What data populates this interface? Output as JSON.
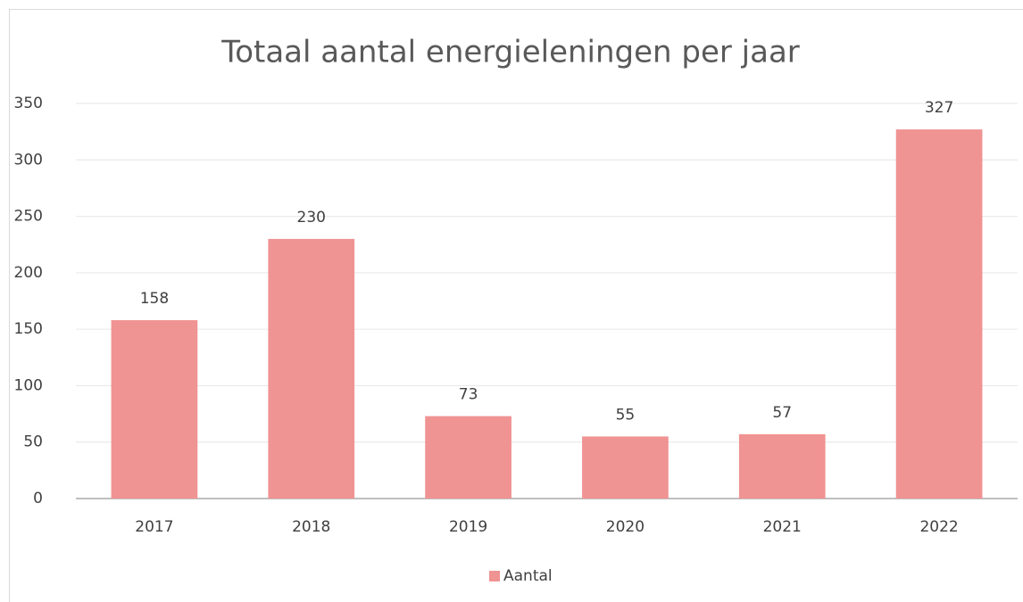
{
  "chart_data": {
    "type": "bar",
    "title": "Totaal aantal energieleningen per jaar",
    "categories": [
      "2017",
      "2018",
      "2019",
      "2020",
      "2021",
      "2022"
    ],
    "series": [
      {
        "name": "Aantal",
        "color": "#f09393",
        "values": [
          158,
          230,
          73,
          55,
          57,
          327
        ]
      }
    ],
    "ylim": [
      0,
      350
    ],
    "yticks": [
      0,
      50,
      100,
      150,
      200,
      250,
      300,
      350
    ],
    "grid": true,
    "legend": "bottom"
  }
}
